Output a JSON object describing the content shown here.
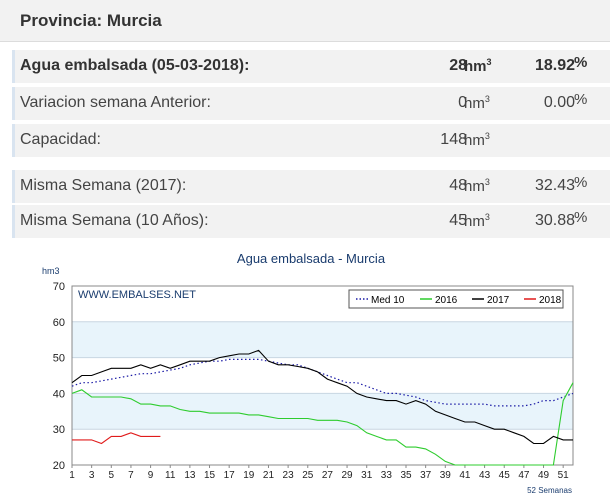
{
  "province_title": "Provincia: Murcia",
  "rows": [
    {
      "label": "Agua embalsada (05-03-2018):",
      "value": "28",
      "unit": "hm",
      "unit_sup": "3",
      "pct": "18.92",
      "pct_sign": "%",
      "bold": true
    },
    {
      "label": "Variacion semana Anterior:",
      "value": "0",
      "unit": "hm",
      "unit_sup": "3",
      "pct": "0.00",
      "pct_sign": "%",
      "bold": false
    },
    {
      "label": "Capacidad:",
      "value": "148",
      "unit": "hm",
      "unit_sup": "3",
      "pct": "",
      "pct_sign": "",
      "bold": false
    },
    {
      "label": "Misma Semana (2017):",
      "value": "48",
      "unit": "hm",
      "unit_sup": "3",
      "pct": "32.43",
      "pct_sign": "%",
      "bold": false
    },
    {
      "label": "Misma Semana (10 Años):",
      "value": "45",
      "unit": "hm",
      "unit_sup": "3",
      "pct": "30.88",
      "pct_sign": "%",
      "bold": false
    }
  ],
  "chart_data": {
    "type": "line",
    "title": "Agua embalsada - Murcia",
    "ylabel": "hm3",
    "xlabel": "52 Semanas",
    "watermark": "WWW.EMBALSES.NET",
    "ylim": [
      20,
      70
    ],
    "xlim": [
      1,
      52
    ],
    "yticks": [
      20,
      30,
      40,
      50,
      60,
      70
    ],
    "xticks": [
      1,
      3,
      5,
      7,
      9,
      11,
      13,
      15,
      17,
      19,
      21,
      23,
      25,
      27,
      29,
      31,
      33,
      35,
      37,
      39,
      41,
      43,
      45,
      47,
      49,
      51
    ],
    "bands": [
      [
        30,
        40
      ],
      [
        50,
        60
      ]
    ],
    "legend_position": "top-right",
    "series": [
      {
        "name": "Med 10",
        "color": "#1a1aa6",
        "style": "dotted",
        "x": [
          1,
          2,
          3,
          4,
          5,
          6,
          7,
          8,
          9,
          10,
          11,
          12,
          13,
          14,
          15,
          16,
          17,
          18,
          19,
          20,
          21,
          22,
          23,
          24,
          25,
          26,
          27,
          28,
          29,
          30,
          31,
          32,
          33,
          34,
          35,
          36,
          37,
          38,
          39,
          40,
          41,
          42,
          43,
          44,
          45,
          46,
          47,
          48,
          49,
          50,
          51,
          52
        ],
        "values": [
          42,
          43,
          43,
          43.5,
          44,
          44.5,
          45,
          45.5,
          45.5,
          46,
          46.5,
          47,
          48,
          48.5,
          49,
          49,
          49.5,
          49.5,
          49.5,
          49.5,
          49,
          48.5,
          48,
          48,
          47,
          46,
          45,
          44,
          43,
          43,
          42,
          41,
          40,
          40,
          39.5,
          39,
          38,
          37.5,
          37,
          37,
          37,
          37,
          37,
          36.5,
          36.5,
          36.5,
          36.5,
          37,
          38,
          38,
          39,
          40
        ]
      },
      {
        "name": "2016",
        "color": "#2ecc2e",
        "style": "solid",
        "x": [
          1,
          2,
          3,
          4,
          5,
          6,
          7,
          8,
          9,
          10,
          11,
          12,
          13,
          14,
          15,
          16,
          17,
          18,
          19,
          20,
          21,
          22,
          23,
          24,
          25,
          26,
          27,
          28,
          29,
          30,
          31,
          32,
          33,
          34,
          35,
          36,
          37,
          38,
          39,
          40,
          41,
          42,
          43,
          44,
          45,
          46,
          47,
          48,
          49,
          50,
          51,
          52
        ],
        "values": [
          40,
          41,
          39,
          39,
          39,
          39,
          38.5,
          37,
          37,
          36.5,
          36.5,
          35.5,
          35,
          35,
          34.5,
          34.5,
          34.5,
          34.5,
          34,
          34,
          33.5,
          33,
          33,
          33,
          33,
          32.5,
          32.5,
          32.5,
          32,
          31,
          29,
          28,
          27,
          27,
          25,
          25,
          24.5,
          23,
          21,
          19,
          17,
          16,
          16,
          15,
          14,
          15,
          14,
          16,
          18,
          20,
          38,
          43
        ]
      },
      {
        "name": "2017",
        "color": "#000000",
        "style": "solid",
        "x": [
          1,
          2,
          3,
          4,
          5,
          6,
          7,
          8,
          9,
          10,
          11,
          12,
          13,
          14,
          15,
          16,
          17,
          18,
          19,
          20,
          21,
          22,
          23,
          24,
          25,
          26,
          27,
          28,
          29,
          30,
          31,
          32,
          33,
          34,
          35,
          36,
          37,
          38,
          39,
          40,
          41,
          42,
          43,
          44,
          45,
          46,
          47,
          48,
          49,
          50,
          51,
          52
        ],
        "values": [
          43,
          45,
          45,
          46,
          47,
          47,
          47,
          48,
          47,
          48,
          47,
          48,
          49,
          49,
          49,
          50,
          50.5,
          51,
          51,
          52,
          49,
          48,
          48,
          47.5,
          47,
          46,
          44,
          43,
          42,
          40,
          39,
          38.5,
          38,
          38,
          37,
          38,
          37,
          35,
          34,
          33,
          32,
          32,
          31,
          30,
          30,
          29,
          28,
          26,
          26,
          28,
          27,
          27
        ]
      },
      {
        "name": "2018",
        "color": "#e01b1b",
        "style": "solid",
        "x": [
          1,
          2,
          3,
          4,
          5,
          6,
          7,
          8,
          9,
          10
        ],
        "values": [
          27,
          27,
          27,
          26,
          28,
          28,
          29,
          28,
          28,
          28
        ]
      }
    ]
  }
}
